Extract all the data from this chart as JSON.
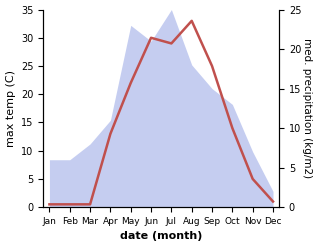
{
  "months": [
    "Jan",
    "Feb",
    "Mar",
    "Apr",
    "May",
    "Jun",
    "Jul",
    "Aug",
    "Sep",
    "Oct",
    "Nov",
    "Dec"
  ],
  "temperature": [
    0.5,
    0.5,
    0.5,
    13.0,
    22.0,
    30.0,
    29.0,
    33.0,
    25.0,
    14.0,
    5.0,
    1.0
  ],
  "precipitation": [
    6.0,
    6.0,
    8.0,
    11.0,
    23.0,
    21.0,
    25.0,
    18.0,
    15.0,
    13.0,
    7.0,
    2.0
  ],
  "temp_color": "#c0504d",
  "precip_fill_color": "#bbc5ee",
  "temp_ylim": [
    0,
    35
  ],
  "precip_ylim": [
    0,
    25
  ],
  "temp_yticks": [
    0,
    5,
    10,
    15,
    20,
    25,
    30,
    35
  ],
  "precip_yticks": [
    0,
    5,
    10,
    15,
    20,
    25
  ],
  "xlabel": "date (month)",
  "ylabel_left": "max temp (C)",
  "ylabel_right": "med. precipitation (kg/m2)",
  "label_fontsize": 8,
  "tick_fontsize": 7
}
